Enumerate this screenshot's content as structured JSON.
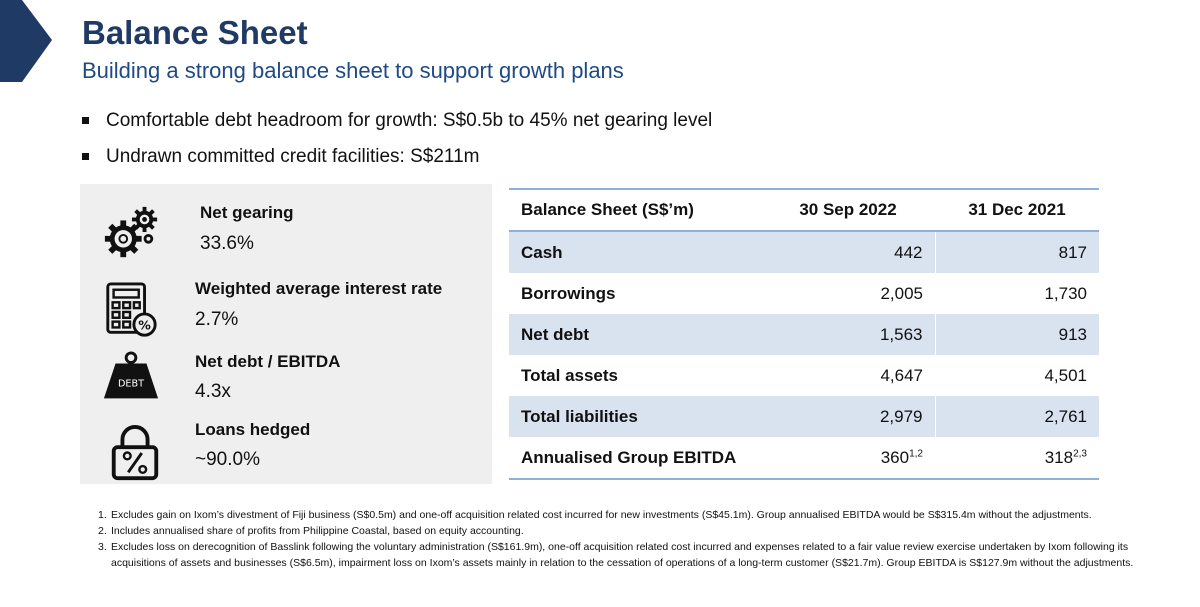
{
  "header": {
    "title": "Balance Sheet",
    "subtitle": "Building a strong balance sheet to support growth plans"
  },
  "bullets": [
    "Comfortable debt headroom for growth: S$0.5b to 45% net gearing level",
    "Undrawn committed credit facilities: S$211m"
  ],
  "kpis": [
    {
      "icon": "gears-icon",
      "label": "Net gearing",
      "value": "33.6%"
    },
    {
      "icon": "calculator-percent-icon",
      "label": "Weighted average interest rate",
      "value": "2.7%"
    },
    {
      "icon": "debt-weight-icon",
      "icon_text": "DEBT",
      "label": "Net debt / EBITDA",
      "value": "4.3x"
    },
    {
      "icon": "lock-percent-icon",
      "label": "Loans hedged",
      "value": "~90.0%"
    }
  ],
  "table": {
    "headers": [
      "Balance Sheet (S$’m)",
      "30 Sep 2022",
      "31 Dec 2021"
    ],
    "rows": [
      {
        "name": "Cash",
        "c1": "442",
        "c2": "817"
      },
      {
        "name": "Borrowings",
        "c1": "2,005",
        "c2": "1,730"
      },
      {
        "name": "Net debt",
        "c1": "1,563",
        "c2": "913"
      },
      {
        "name": "Total assets",
        "c1": "4,647",
        "c2": "4,501"
      },
      {
        "name": "Total liabilities",
        "c1": "2,979",
        "c2": "2,761"
      },
      {
        "name": "Annualised Group EBITDA",
        "c1": "360",
        "c1_sup": "1,2",
        "c2": "318",
        "c2_sup": "2,3"
      }
    ]
  },
  "footnotes": [
    {
      "num": "1.",
      "text": "Excludes gain on Ixom’s divestment of Fiji business (S$0.5m) and one-off acquisition related cost incurred for new investments (S$45.1m). Group annualised EBITDA would be S$315.4m without the adjustments."
    },
    {
      "num": "2.",
      "text": "Includes annualised share of profits from Philippine Coastal, based on equity accounting."
    },
    {
      "num": "3.",
      "text": "Excludes loss on derecognition of Basslink following the voluntary administration (S$161.9m), one-off acquisition related cost incurred and expenses related to a fair value review exercise undertaken by Ixom following its acquisitions of assets and businesses (S$6.5m), impairment loss on Ixom’s assets mainly in relation to the cessation of operations of a long-term customer (S$21.7m). Group EBITDA is S$127.9m without the adjustments."
    }
  ],
  "colors": {
    "title": "#1f3a64",
    "accent": "#1f4a82",
    "table_shade": "#d9e2ef",
    "table_rule": "#8fb0d6"
  }
}
